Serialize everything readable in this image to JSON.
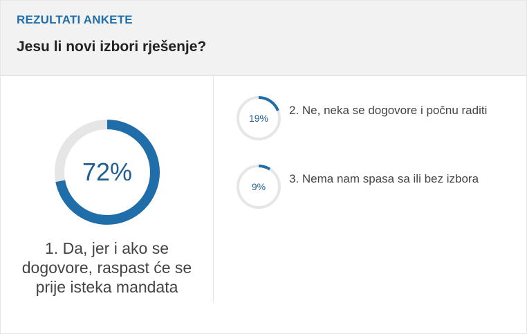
{
  "poll": {
    "kicker": "REZULTATI ANKETE",
    "question": "Jesu li novi izbori rješenje?",
    "accent_color": "#1f6ea9",
    "track_color": "#e6e6e6",
    "options": [
      {
        "label": "1. Da, jer i ako se dogovore, raspast će se prije isteka mandata",
        "percent_label": "72%",
        "percent": 72
      },
      {
        "label": "2. Ne, neka se dogovore i počnu raditi",
        "percent_label": "19%",
        "percent": 19
      },
      {
        "label": "3. Nema nam spasa sa ili bez izbora",
        "percent_label": "9%",
        "percent": 9
      }
    ]
  }
}
